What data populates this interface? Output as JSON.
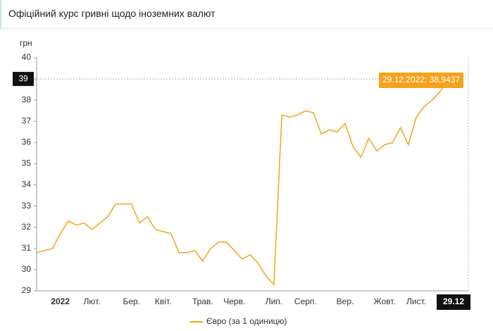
{
  "title": "Офіційний курс гривні щодо іноземних валют",
  "chart_data": {
    "type": "line",
    "y_unit": "грн",
    "categories": [
      null,
      null,
      null,
      "2022",
      null,
      null,
      null,
      "Лют.",
      null,
      null,
      null,
      null,
      "Бер.",
      null,
      null,
      null,
      "Квіт.",
      null,
      null,
      null,
      null,
      "Трав.",
      null,
      null,
      null,
      "Черв.",
      null,
      null,
      null,
      null,
      "Лип.",
      null,
      null,
      null,
      "Серп.",
      null,
      null,
      null,
      null,
      "Вер.",
      null,
      null,
      null,
      null,
      "Жовт.",
      null,
      null,
      null,
      "Лист.",
      null,
      null,
      null,
      "29.12"
    ],
    "series": [
      {
        "name": "Євро (за 1 одиницю)",
        "color": "#f5a31a",
        "values": [
          30.8,
          30.9,
          31.0,
          31.7,
          32.3,
          32.1,
          32.2,
          31.9,
          32.2,
          32.5,
          33.1,
          33.1,
          33.1,
          32.2,
          32.5,
          31.9,
          31.8,
          31.7,
          30.8,
          30.8,
          30.9,
          30.4,
          31.0,
          31.3,
          31.3,
          30.9,
          30.5,
          30.7,
          30.3,
          29.7,
          29.3,
          37.3,
          37.2,
          37.3,
          37.5,
          37.4,
          36.4,
          36.6,
          36.5,
          36.9,
          35.8,
          35.3,
          36.2,
          35.6,
          35.9,
          36.0,
          36.7,
          35.9,
          37.2,
          37.7,
          38.0,
          38.4,
          38.9437
        ],
        "value_labels": {
          "52": "29.12.2022: 38,9437"
        }
      }
    ],
    "ylim": [
      29,
      40
    ],
    "yticks": [
      29,
      30,
      31,
      32,
      33,
      34,
      35,
      36,
      37,
      38,
      39,
      40
    ],
    "tooltip_index": 52,
    "grid": false
  }
}
